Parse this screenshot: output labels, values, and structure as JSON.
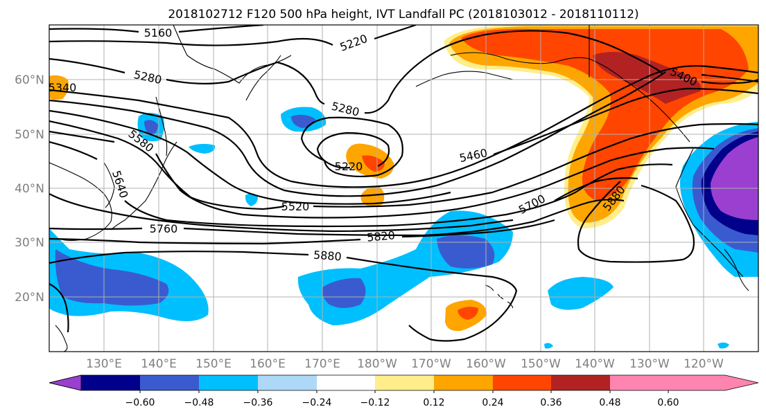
{
  "title": "2018102712 F120 500 hPa height, IVT Landfall PC (2018103012 - 2018110112)",
  "lat_labels": [
    "60°N",
    "50°N",
    "40°N",
    "30°N",
    "20°N"
  ],
  "lon_labels": [
    "130°E",
    "140°E",
    "150°E",
    "160°E",
    "170°E",
    "180°W",
    "170°W",
    "160°W",
    "150°W",
    "140°W",
    "130°W",
    "120°W"
  ],
  "contour_labels": [
    {
      "id": "c5160",
      "text": "5160"
    },
    {
      "id": "c5220a",
      "text": "5220"
    },
    {
      "id": "c5280a",
      "text": "5280"
    },
    {
      "id": "c5280b",
      "text": "5280"
    },
    {
      "id": "c5220b",
      "text": "5220"
    },
    {
      "id": "c5340",
      "text": "5340"
    },
    {
      "id": "c5400",
      "text": "5400"
    },
    {
      "id": "c5460",
      "text": "5460"
    },
    {
      "id": "c5520",
      "text": "5520"
    },
    {
      "id": "c5580",
      "text": "5580"
    },
    {
      "id": "c5640",
      "text": "5640"
    },
    {
      "id": "c5700",
      "text": "5700"
    },
    {
      "id": "c5760",
      "text": "5760"
    },
    {
      "id": "c5820",
      "text": "5820"
    },
    {
      "id": "c5880a",
      "text": "5880"
    },
    {
      "id": "c5880b",
      "text": "5880"
    }
  ],
  "colorbar": {
    "ticks": [
      "−0.60",
      "−0.48",
      "−0.36",
      "−0.24",
      "−0.12",
      "0.12",
      "0.24",
      "0.36",
      "0.48",
      "0.60"
    ],
    "colors": [
      "#9a3fd0",
      "#00008b",
      "#3a5bd0",
      "#00bfff",
      "#add8f8",
      "#ffffff",
      "#ffee8a",
      "#ffa500",
      "#ff4500",
      "#b22222",
      "#ff85b0"
    ]
  }
}
